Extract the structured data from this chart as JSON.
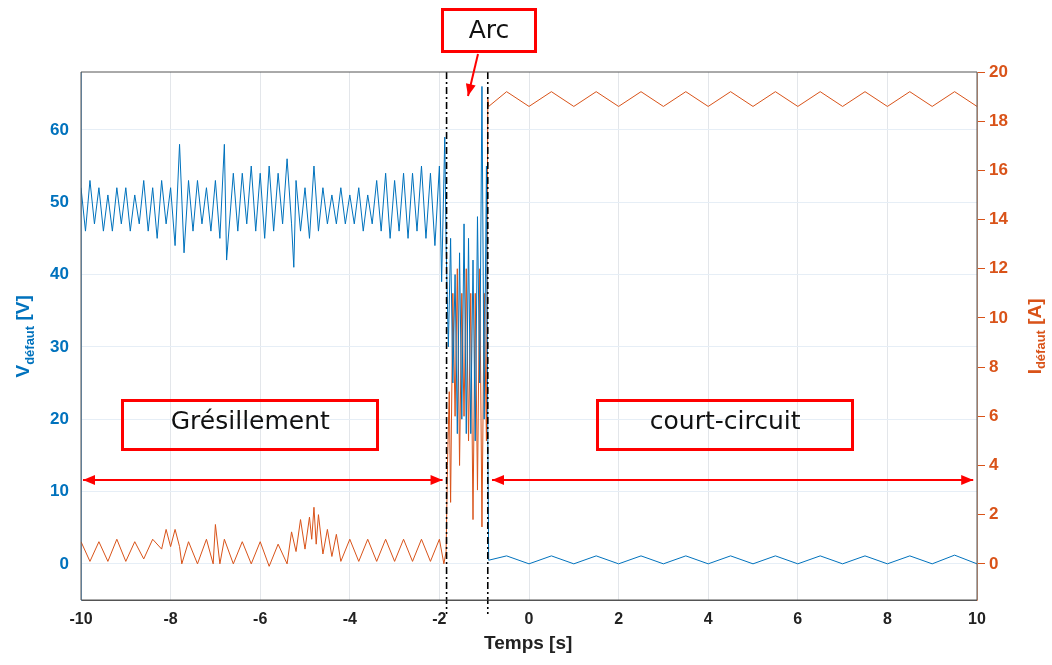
{
  "chart_data": {
    "type": "line",
    "xlabel": "Temps [s]",
    "ylabel": "V$_{défaut}$ [V]",
    "y2label": "I$_{défaut}$ [A]",
    "xlim": [
      -10,
      10
    ],
    "xticks": [
      -10,
      -8,
      -6,
      -4,
      -2,
      0,
      2,
      4,
      6,
      8,
      10
    ],
    "ylim": [
      -5,
      68
    ],
    "yticks": [
      0,
      10,
      20,
      30,
      40,
      50,
      60
    ],
    "y2lim": [
      -1.47,
      20
    ],
    "y2ticks": [
      0,
      2,
      4,
      6,
      8,
      10,
      12,
      14,
      16,
      18,
      20
    ],
    "grid": true,
    "legend": false,
    "marker": "none",
    "line_style": "solid",
    "series": [
      {
        "color": "#0072bd",
        "x": [
          -10,
          -9.9,
          -9.8,
          -9.7,
          -9.6,
          -9.5,
          -9.4,
          -9.3,
          -9.2,
          -9.1,
          -9,
          -8.9,
          -8.8,
          -8.7,
          -8.6,
          -8.5,
          -8.4,
          -8.3,
          -8.2,
          -8.1,
          -8,
          -7.9,
          -7.8,
          -7.7,
          -7.6,
          -7.5,
          -7.4,
          -7.3,
          -7.2,
          -7.1,
          -7,
          -6.9,
          -6.8,
          -6.75,
          -6.6,
          -6.5,
          -6.4,
          -6.3,
          -6.2,
          -6.1,
          -6,
          -5.9,
          -5.8,
          -5.7,
          -5.6,
          -5.5,
          -5.4,
          -5.3,
          -5.25,
          -5.2,
          -5.1,
          -5,
          -4.9,
          -4.8,
          -4.7,
          -4.6,
          -4.5,
          -4.4,
          -4.3,
          -4.2,
          -4.1,
          -4,
          -3.9,
          -3.8,
          -3.7,
          -3.6,
          -3.5,
          -3.4,
          -3.3,
          -3.2,
          -3.1,
          -3,
          -2.9,
          -2.8,
          -2.7,
          -2.6,
          -2.5,
          -2.4,
          -2.3,
          -2.2,
          -2.1,
          -2,
          -1.95,
          -1.88,
          -1.85,
          -1.8,
          -1.75,
          -1.7,
          -1.65,
          -1.6,
          -1.55,
          -1.5,
          -1.45,
          -1.4,
          -1.35,
          -1.3,
          -1.25,
          -1.2,
          -1.15,
          -1.1,
          -1.05,
          -1,
          -0.95,
          -0.92,
          -0.9,
          -0.5,
          0,
          0.5,
          1,
          1.5,
          2,
          2.5,
          3,
          3.5,
          4,
          4.5,
          5,
          5.5,
          6,
          6.5,
          7,
          7.5,
          8,
          8.5,
          9,
          9.5,
          10
        ],
        "values": [
          52,
          46,
          53,
          47,
          52,
          46,
          51,
          46,
          52,
          47,
          52,
          46,
          51,
          47,
          53,
          46,
          52,
          45,
          53,
          47,
          52,
          44,
          58,
          43,
          53,
          46,
          53,
          47,
          52,
          46,
          53,
          45,
          58,
          42,
          54,
          46,
          54,
          47,
          55,
          46,
          54,
          45,
          55,
          46,
          54,
          47,
          56,
          47,
          41,
          53,
          46,
          52,
          45,
          55,
          46,
          52,
          47,
          51,
          47,
          52,
          47,
          51,
          47,
          52,
          46,
          51,
          47,
          53,
          46,
          54,
          45,
          53,
          46,
          54,
          45,
          54,
          46,
          55,
          45,
          54,
          44,
          55,
          39,
          59,
          44,
          30,
          45,
          25,
          40,
          18,
          43,
          20,
          47,
          18,
          45,
          18,
          42,
          17,
          48,
          25,
          66,
          20,
          55,
          18,
          0.5,
          1.1,
          0,
          1.1,
          0,
          1.1,
          0,
          1.1,
          0,
          1.1,
          0,
          1.1,
          0,
          1.1,
          0,
          1.1,
          0,
          1.1,
          0,
          1.1,
          0,
          1.2,
          0
        ]
      },
      {
        "color": "#d95319",
        "axis": "y2",
        "x": [
          -10,
          -9.8,
          -9.6,
          -9.4,
          -9.2,
          -9,
          -8.8,
          -8.6,
          -8.4,
          -8.2,
          -8.1,
          -8,
          -7.9,
          -7.8,
          -7.75,
          -7.6,
          -7.4,
          -7.2,
          -7.05,
          -7,
          -6.9,
          -6.8,
          -6.6,
          -6.4,
          -6.2,
          -6,
          -5.8,
          -5.6,
          -5.4,
          -5.3,
          -5.2,
          -5.1,
          -5,
          -4.9,
          -4.85,
          -4.8,
          -4.75,
          -4.7,
          -4.6,
          -4.5,
          -4.4,
          -4.3,
          -4.2,
          -4,
          -3.8,
          -3.6,
          -3.4,
          -3.2,
          -3,
          -2.8,
          -2.6,
          -2.4,
          -2.2,
          -2,
          -1.9,
          -1.85,
          -1.82,
          -1.78,
          -1.75,
          -1.7,
          -1.65,
          -1.6,
          -1.55,
          -1.5,
          -1.45,
          -1.4,
          -1.35,
          -1.3,
          -1.25,
          -1.2,
          -1.15,
          -1.1,
          -1.05,
          -1,
          -0.95,
          -0.92,
          -0.9,
          -0.5,
          0,
          0.5,
          1,
          1.5,
          2,
          2.5,
          3,
          3.5,
          4,
          4.5,
          5,
          5.5,
          6,
          6.5,
          7,
          7.5,
          8,
          8.5,
          9,
          9.5,
          10
        ],
        "values": [
          0.9,
          0.1,
          0.9,
          0.1,
          1,
          0.1,
          0.9,
          0.2,
          1,
          0.6,
          1.4,
          0.7,
          1.4,
          0.7,
          0,
          0.9,
          0,
          1,
          0,
          1.6,
          0,
          1,
          0,
          0.9,
          0,
          0.9,
          -0.1,
          0.8,
          0,
          1.3,
          0.5,
          1.8,
          0.6,
          1.9,
          1,
          2.3,
          0.8,
          2,
          0.4,
          1.4,
          0.3,
          1.2,
          0.1,
          1,
          0.1,
          1,
          0.1,
          1,
          0.1,
          1,
          0.1,
          1,
          0.1,
          1,
          0,
          0.5,
          4,
          7,
          2.5,
          11,
          6,
          12,
          4,
          11,
          6,
          12,
          5,
          11,
          1.8,
          11,
          3,
          12,
          1.5,
          11,
          5,
          18.9,
          18.6,
          19.2,
          18.6,
          19.2,
          18.6,
          19.2,
          18.6,
          19.2,
          18.6,
          19.2,
          18.6,
          19.2,
          18.6,
          19.2,
          18.6,
          19.2,
          18.6,
          19.2,
          18.6,
          19.2,
          18.6,
          19.2,
          18.6
        ]
      }
    ],
    "ref_lines": [
      {
        "axis": "x",
        "value": -1.84,
        "color": "#000000",
        "line_style": "dashed"
      },
      {
        "axis": "x",
        "value": -0.92,
        "color": "#000000",
        "line_style": "dashed"
      }
    ],
    "annotations": [
      "Arc",
      "Grésillement",
      "court-circuit"
    ]
  }
}
